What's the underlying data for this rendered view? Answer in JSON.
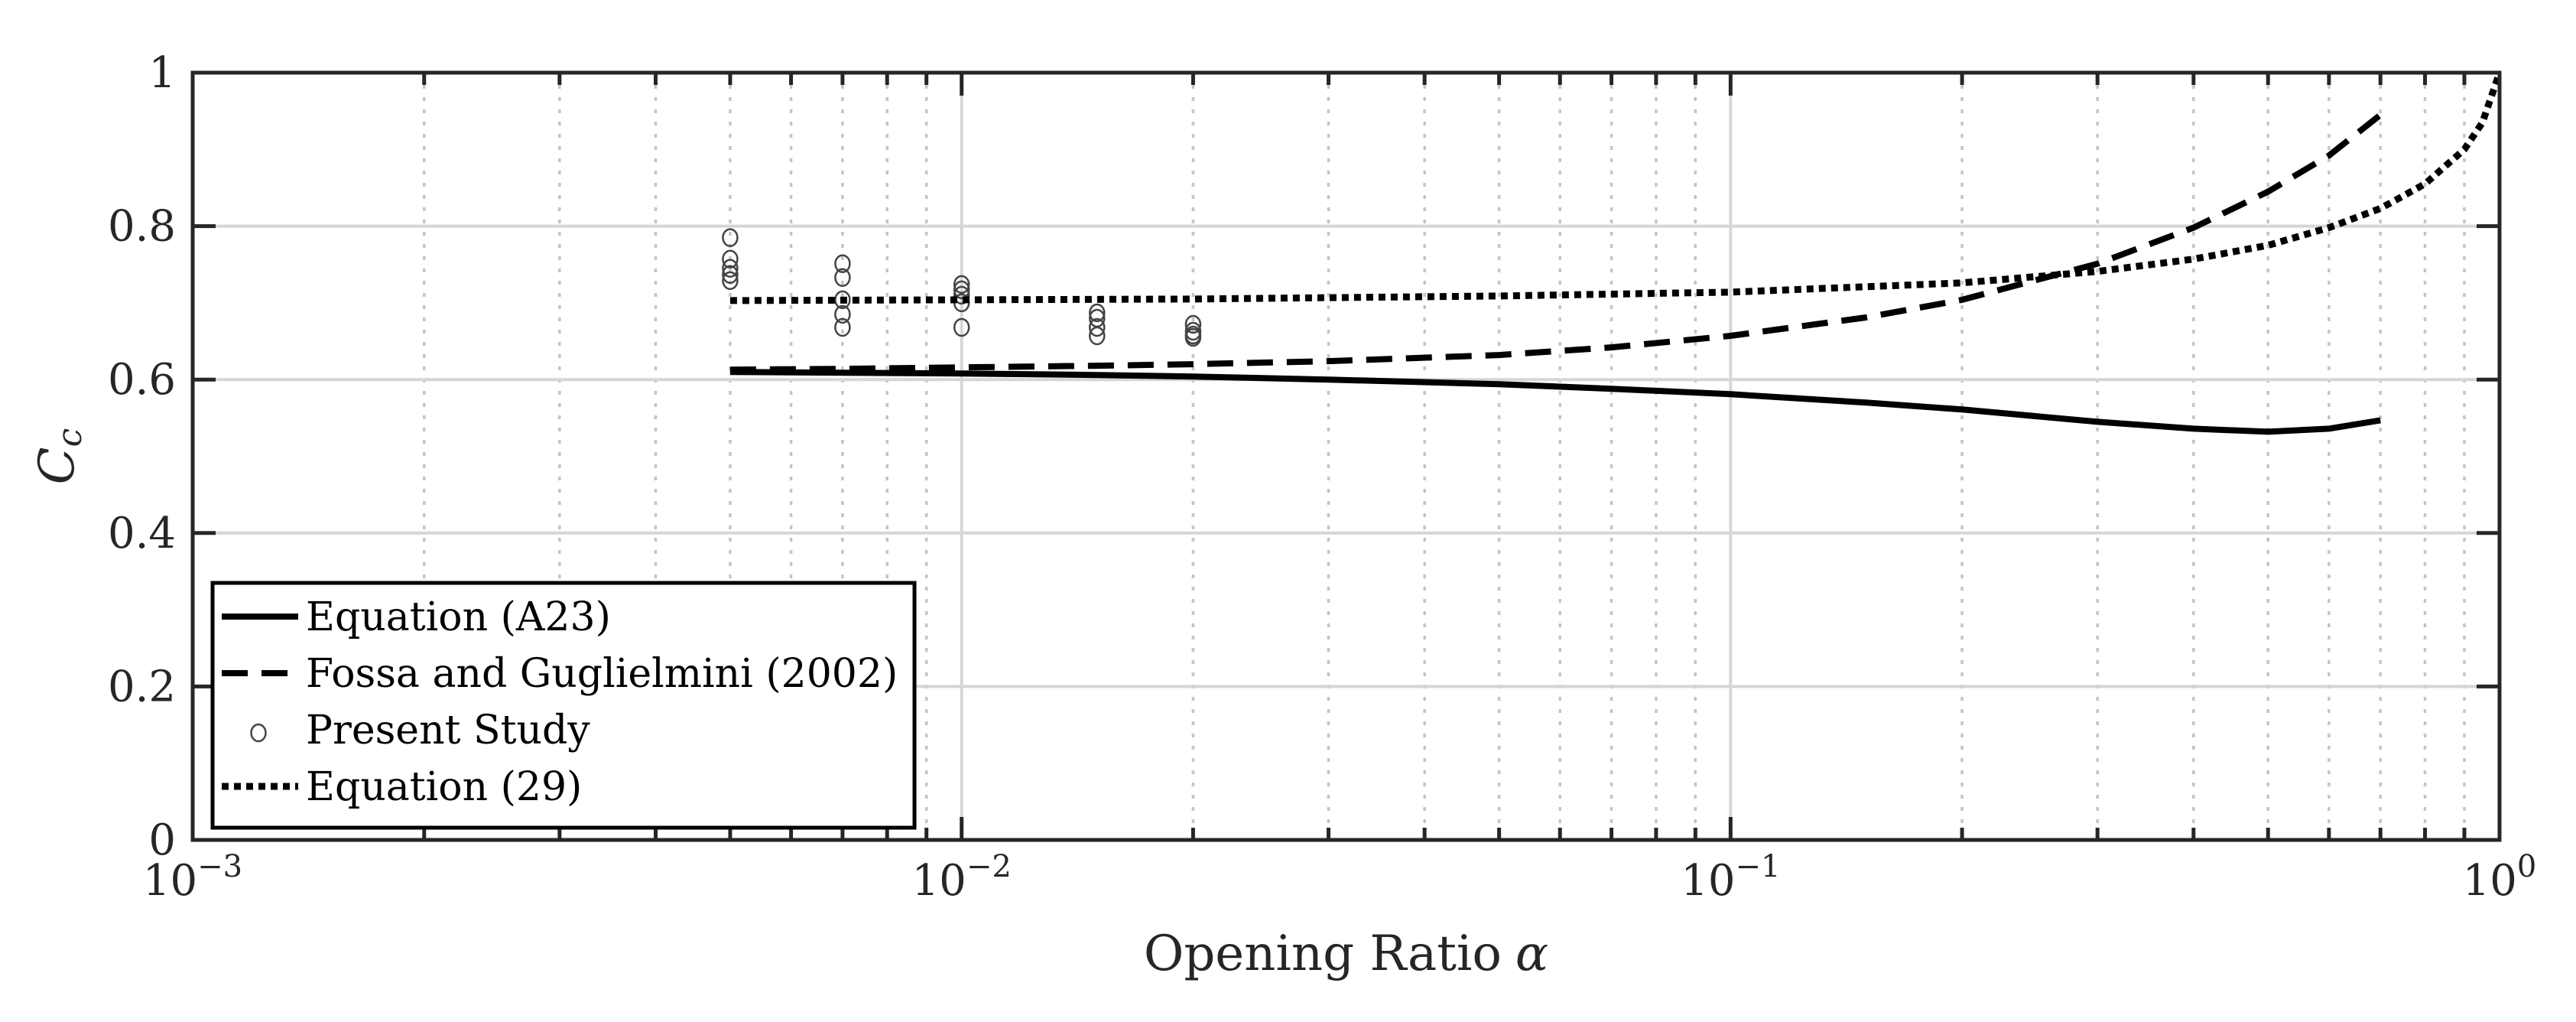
{
  "chart_data": {
    "type": "line",
    "xlabel": "Opening Ratio",
    "xlabel_symbol": "α",
    "ylabel_main": "C",
    "ylabel_sub": "c",
    "xscale": "log",
    "xlim": [
      0.001,
      1
    ],
    "ylim": [
      0,
      1
    ],
    "x_ticks": [
      {
        "value": 0.001,
        "base": "10",
        "exp": "−3"
      },
      {
        "value": 0.01,
        "base": "10",
        "exp": "−2"
      },
      {
        "value": 0.1,
        "base": "10",
        "exp": "−1"
      },
      {
        "value": 1,
        "base": "10",
        "exp": "0"
      }
    ],
    "y_ticks": [
      {
        "value": 0,
        "label": "0"
      },
      {
        "value": 0.2,
        "label": "0.2"
      },
      {
        "value": 0.4,
        "label": "0.4"
      },
      {
        "value": 0.6,
        "label": "0.6"
      },
      {
        "value": 0.8,
        "label": "0.8"
      },
      {
        "value": 1,
        "label": "1"
      }
    ],
    "grid": true,
    "legend_position": "bottom-left",
    "series": [
      {
        "name": "Equation (A23)",
        "style": "solid",
        "x": [
          0.005,
          0.007,
          0.01,
          0.015,
          0.02,
          0.03,
          0.05,
          0.07,
          0.1,
          0.15,
          0.2,
          0.3,
          0.4,
          0.5,
          0.6,
          0.7
        ],
        "y": [
          0.61,
          0.609,
          0.608,
          0.606,
          0.604,
          0.6,
          0.594,
          0.588,
          0.581,
          0.57,
          0.561,
          0.545,
          0.536,
          0.532,
          0.536,
          0.547
        ]
      },
      {
        "name": "Fossa and Guglielmini (2002)",
        "style": "dashed",
        "x": [
          0.005,
          0.007,
          0.01,
          0.015,
          0.02,
          0.03,
          0.05,
          0.07,
          0.1,
          0.15,
          0.2,
          0.3,
          0.4,
          0.5,
          0.6,
          0.7
        ],
        "y": [
          0.613,
          0.614,
          0.616,
          0.618,
          0.62,
          0.624,
          0.632,
          0.642,
          0.657,
          0.681,
          0.704,
          0.751,
          0.798,
          0.845,
          0.892,
          0.945
        ]
      },
      {
        "name": "Present Study",
        "style": "markers",
        "x": [
          0.005,
          0.005,
          0.005,
          0.005,
          0.005,
          0.007,
          0.007,
          0.007,
          0.007,
          0.007,
          0.01,
          0.01,
          0.01,
          0.01,
          0.01,
          0.015,
          0.015,
          0.015,
          0.015,
          0.02,
          0.02,
          0.02,
          0.02
        ],
        "y": [
          0.785,
          0.757,
          0.745,
          0.737,
          0.729,
          0.751,
          0.733,
          0.704,
          0.685,
          0.668,
          0.724,
          0.717,
          0.71,
          0.7,
          0.668,
          0.687,
          0.68,
          0.668,
          0.657,
          0.672,
          0.663,
          0.658,
          0.655
        ]
      },
      {
        "name": "Equation (29)",
        "style": "dotted",
        "x": [
          0.005,
          0.01,
          0.02,
          0.05,
          0.1,
          0.2,
          0.3,
          0.4,
          0.5,
          0.6,
          0.7,
          0.8,
          0.9,
          0.95,
          1.0
        ],
        "y": [
          0.703,
          0.704,
          0.705,
          0.709,
          0.714,
          0.726,
          0.741,
          0.757,
          0.775,
          0.798,
          0.823,
          0.855,
          0.9,
          0.935,
          1.0
        ]
      }
    ]
  }
}
